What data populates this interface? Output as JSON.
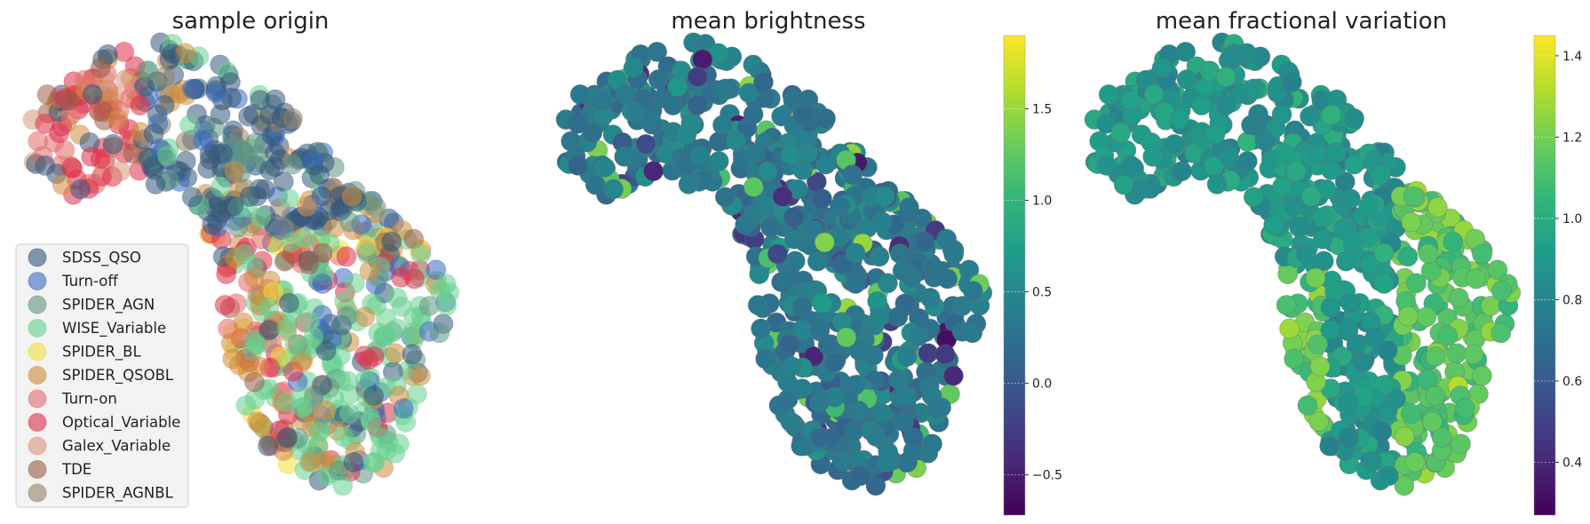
{
  "chart_data": [
    {
      "type": "scatter",
      "title": "sample origin",
      "xlabel": "",
      "ylabel": "",
      "legend_position": "bottom-left",
      "grid": false,
      "series": [
        {
          "name": "SDSS_QSO",
          "color": "#35577a"
        },
        {
          "name": "Turn-off",
          "color": "#3a6ac0"
        },
        {
          "name": "SPIDER_AGN",
          "color": "#5f9483"
        },
        {
          "name": "WISE_Variable",
          "color": "#66cf8e"
        },
        {
          "name": "SPIDER_BL",
          "color": "#f0e03a"
        },
        {
          "name": "SPIDER_QSOBL",
          "color": "#cf8c3c"
        },
        {
          "name": "Turn-on",
          "color": "#e36a6a"
        },
        {
          "name": "Optical_Variable",
          "color": "#de2f4b"
        },
        {
          "name": "Galex_Variable",
          "color": "#d8967a"
        },
        {
          "name": "TDE",
          "color": "#9a5d48"
        },
        {
          "name": "SPIDER_AGNBL",
          "color": "#978266"
        }
      ]
    },
    {
      "type": "scatter",
      "title": "mean brightness",
      "xlabel": "",
      "ylabel": "",
      "colormap": "viridis",
      "colorbar": {
        "min": -0.72,
        "max": 1.9,
        "ticks": [
          -0.5,
          0.0,
          0.5,
          1.0,
          1.5
        ],
        "tick_labels": [
          "−0.5",
          "0.0",
          "0.5",
          "1.0",
          "1.5"
        ]
      },
      "typical_value": 0.35
    },
    {
      "type": "scatter",
      "title": "mean fractional variation",
      "xlabel": "",
      "ylabel": "",
      "colormap": "viridis",
      "colorbar": {
        "min": 0.27,
        "max": 1.45,
        "ticks": [
          0.4,
          0.6,
          0.8,
          1.0,
          1.2,
          1.4
        ],
        "tick_labels": [
          "0.4",
          "0.6",
          "0.8",
          "1.0",
          "1.2",
          "1.4"
        ]
      },
      "typical_value": 0.9
    }
  ]
}
